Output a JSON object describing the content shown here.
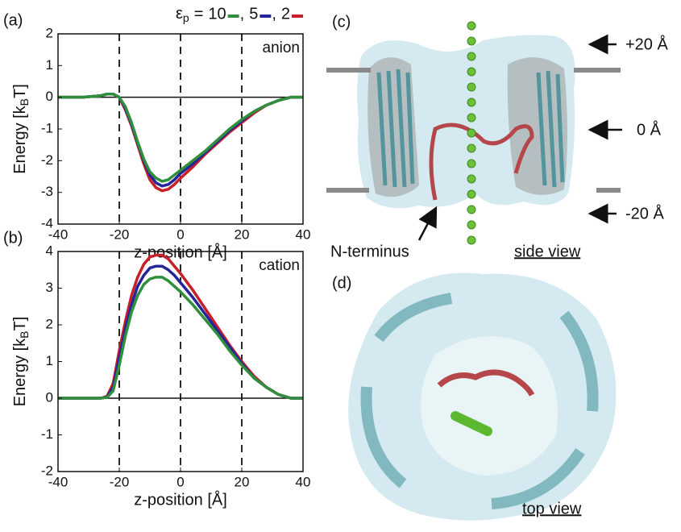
{
  "chart_data": [
    {
      "type": "line",
      "panel_label": "(a)",
      "annotation": "anion",
      "legend": {
        "symbol": "ε",
        "subscript": "p",
        "equals": "=",
        "separator": ","
      },
      "ylabel": {
        "main": "Energy [k",
        "sub": "B",
        "end": "T]"
      },
      "xlabel": "z-position [Å]",
      "x": [
        -40,
        -32,
        -26,
        -24,
        -22,
        -20,
        -18,
        -16,
        -14,
        -12,
        -10,
        -8,
        -6,
        -4,
        -2,
        0,
        4,
        8,
        12,
        16,
        20,
        24,
        28,
        32,
        36,
        40
      ],
      "series": [
        {
          "name": "10",
          "color": "#2f8f3a",
          "values": [
            0,
            0,
            0.05,
            0.1,
            0.1,
            0,
            -0.3,
            -0.8,
            -1.4,
            -1.95,
            -2.35,
            -2.55,
            -2.65,
            -2.6,
            -2.45,
            -2.3,
            -2.0,
            -1.7,
            -1.35,
            -1.0,
            -0.7,
            -0.45,
            -0.25,
            -0.1,
            0,
            0
          ]
        },
        {
          "name": "5",
          "color": "#25259a",
          "values": [
            0,
            0,
            0.05,
            0.1,
            0.1,
            0,
            -0.35,
            -0.85,
            -1.45,
            -2.0,
            -2.45,
            -2.7,
            -2.8,
            -2.75,
            -2.6,
            -2.4,
            -2.1,
            -1.75,
            -1.4,
            -1.05,
            -0.75,
            -0.45,
            -0.25,
            -0.1,
            0,
            0
          ]
        },
        {
          "name": "2",
          "color": "#c8202a",
          "values": [
            0,
            0,
            0.05,
            0.1,
            0.1,
            0,
            -0.4,
            -0.9,
            -1.5,
            -2.1,
            -2.6,
            -2.85,
            -2.95,
            -2.9,
            -2.75,
            -2.55,
            -2.2,
            -1.8,
            -1.45,
            -1.1,
            -0.8,
            -0.5,
            -0.25,
            -0.1,
            0,
            0
          ]
        }
      ],
      "xlim": [
        -40,
        40
      ],
      "xticks": [
        -40,
        -20,
        0,
        20,
        40
      ],
      "ylim": [
        -4,
        2
      ],
      "yticks": [
        -4,
        -3,
        -2,
        -1,
        0,
        1,
        2
      ],
      "vlines": [
        -20,
        0,
        20
      ],
      "hline": 0
    },
    {
      "type": "line",
      "panel_label": "(b)",
      "annotation": "cation",
      "ylabel": {
        "main": "Energy [k",
        "sub": "B",
        "end": "T]"
      },
      "xlabel": "z-position [Å]",
      "x": [
        -40,
        -32,
        -26,
        -24,
        -22,
        -20,
        -18,
        -16,
        -14,
        -12,
        -10,
        -8,
        -6,
        -4,
        -2,
        0,
        4,
        8,
        12,
        16,
        20,
        24,
        28,
        32,
        36,
        40
      ],
      "series": [
        {
          "color": "#2f8f3a",
          "values": [
            0,
            0,
            0,
            0.02,
            0.2,
            0.9,
            1.7,
            2.35,
            2.8,
            3.1,
            3.25,
            3.3,
            3.3,
            3.2,
            3.05,
            2.9,
            2.55,
            2.15,
            1.75,
            1.3,
            0.9,
            0.55,
            0.3,
            0.1,
            0,
            0
          ]
        },
        {
          "color": "#25259a",
          "values": [
            0,
            0,
            0,
            0.03,
            0.3,
            1.1,
            1.9,
            2.55,
            3.05,
            3.35,
            3.55,
            3.6,
            3.6,
            3.5,
            3.35,
            3.15,
            2.75,
            2.3,
            1.85,
            1.4,
            0.95,
            0.55,
            0.3,
            0.1,
            0,
            0
          ]
        },
        {
          "color": "#c8202a",
          "values": [
            0,
            0,
            0,
            0.05,
            0.4,
            1.3,
            2.1,
            2.8,
            3.3,
            3.65,
            3.85,
            3.9,
            3.9,
            3.8,
            3.6,
            3.4,
            2.95,
            2.45,
            1.95,
            1.45,
            1.0,
            0.6,
            0.3,
            0.1,
            0,
            0
          ]
        }
      ],
      "xlim": [
        -40,
        40
      ],
      "xticks": [
        -40,
        -20,
        0,
        20,
        40
      ],
      "ylim": [
        -2,
        4
      ],
      "yticks": [
        -2,
        -1,
        0,
        1,
        2,
        3,
        4
      ],
      "vlines": [
        -20,
        0,
        20
      ],
      "hline": 0
    }
  ],
  "figure": {
    "side": {
      "label": "(c)",
      "marks": [
        "+20 Å",
        "0 Å",
        "-20 Å"
      ],
      "n_terminus": "N-terminus",
      "view": "side view"
    },
    "top": {
      "label": "(d)",
      "view": "top view"
    }
  }
}
